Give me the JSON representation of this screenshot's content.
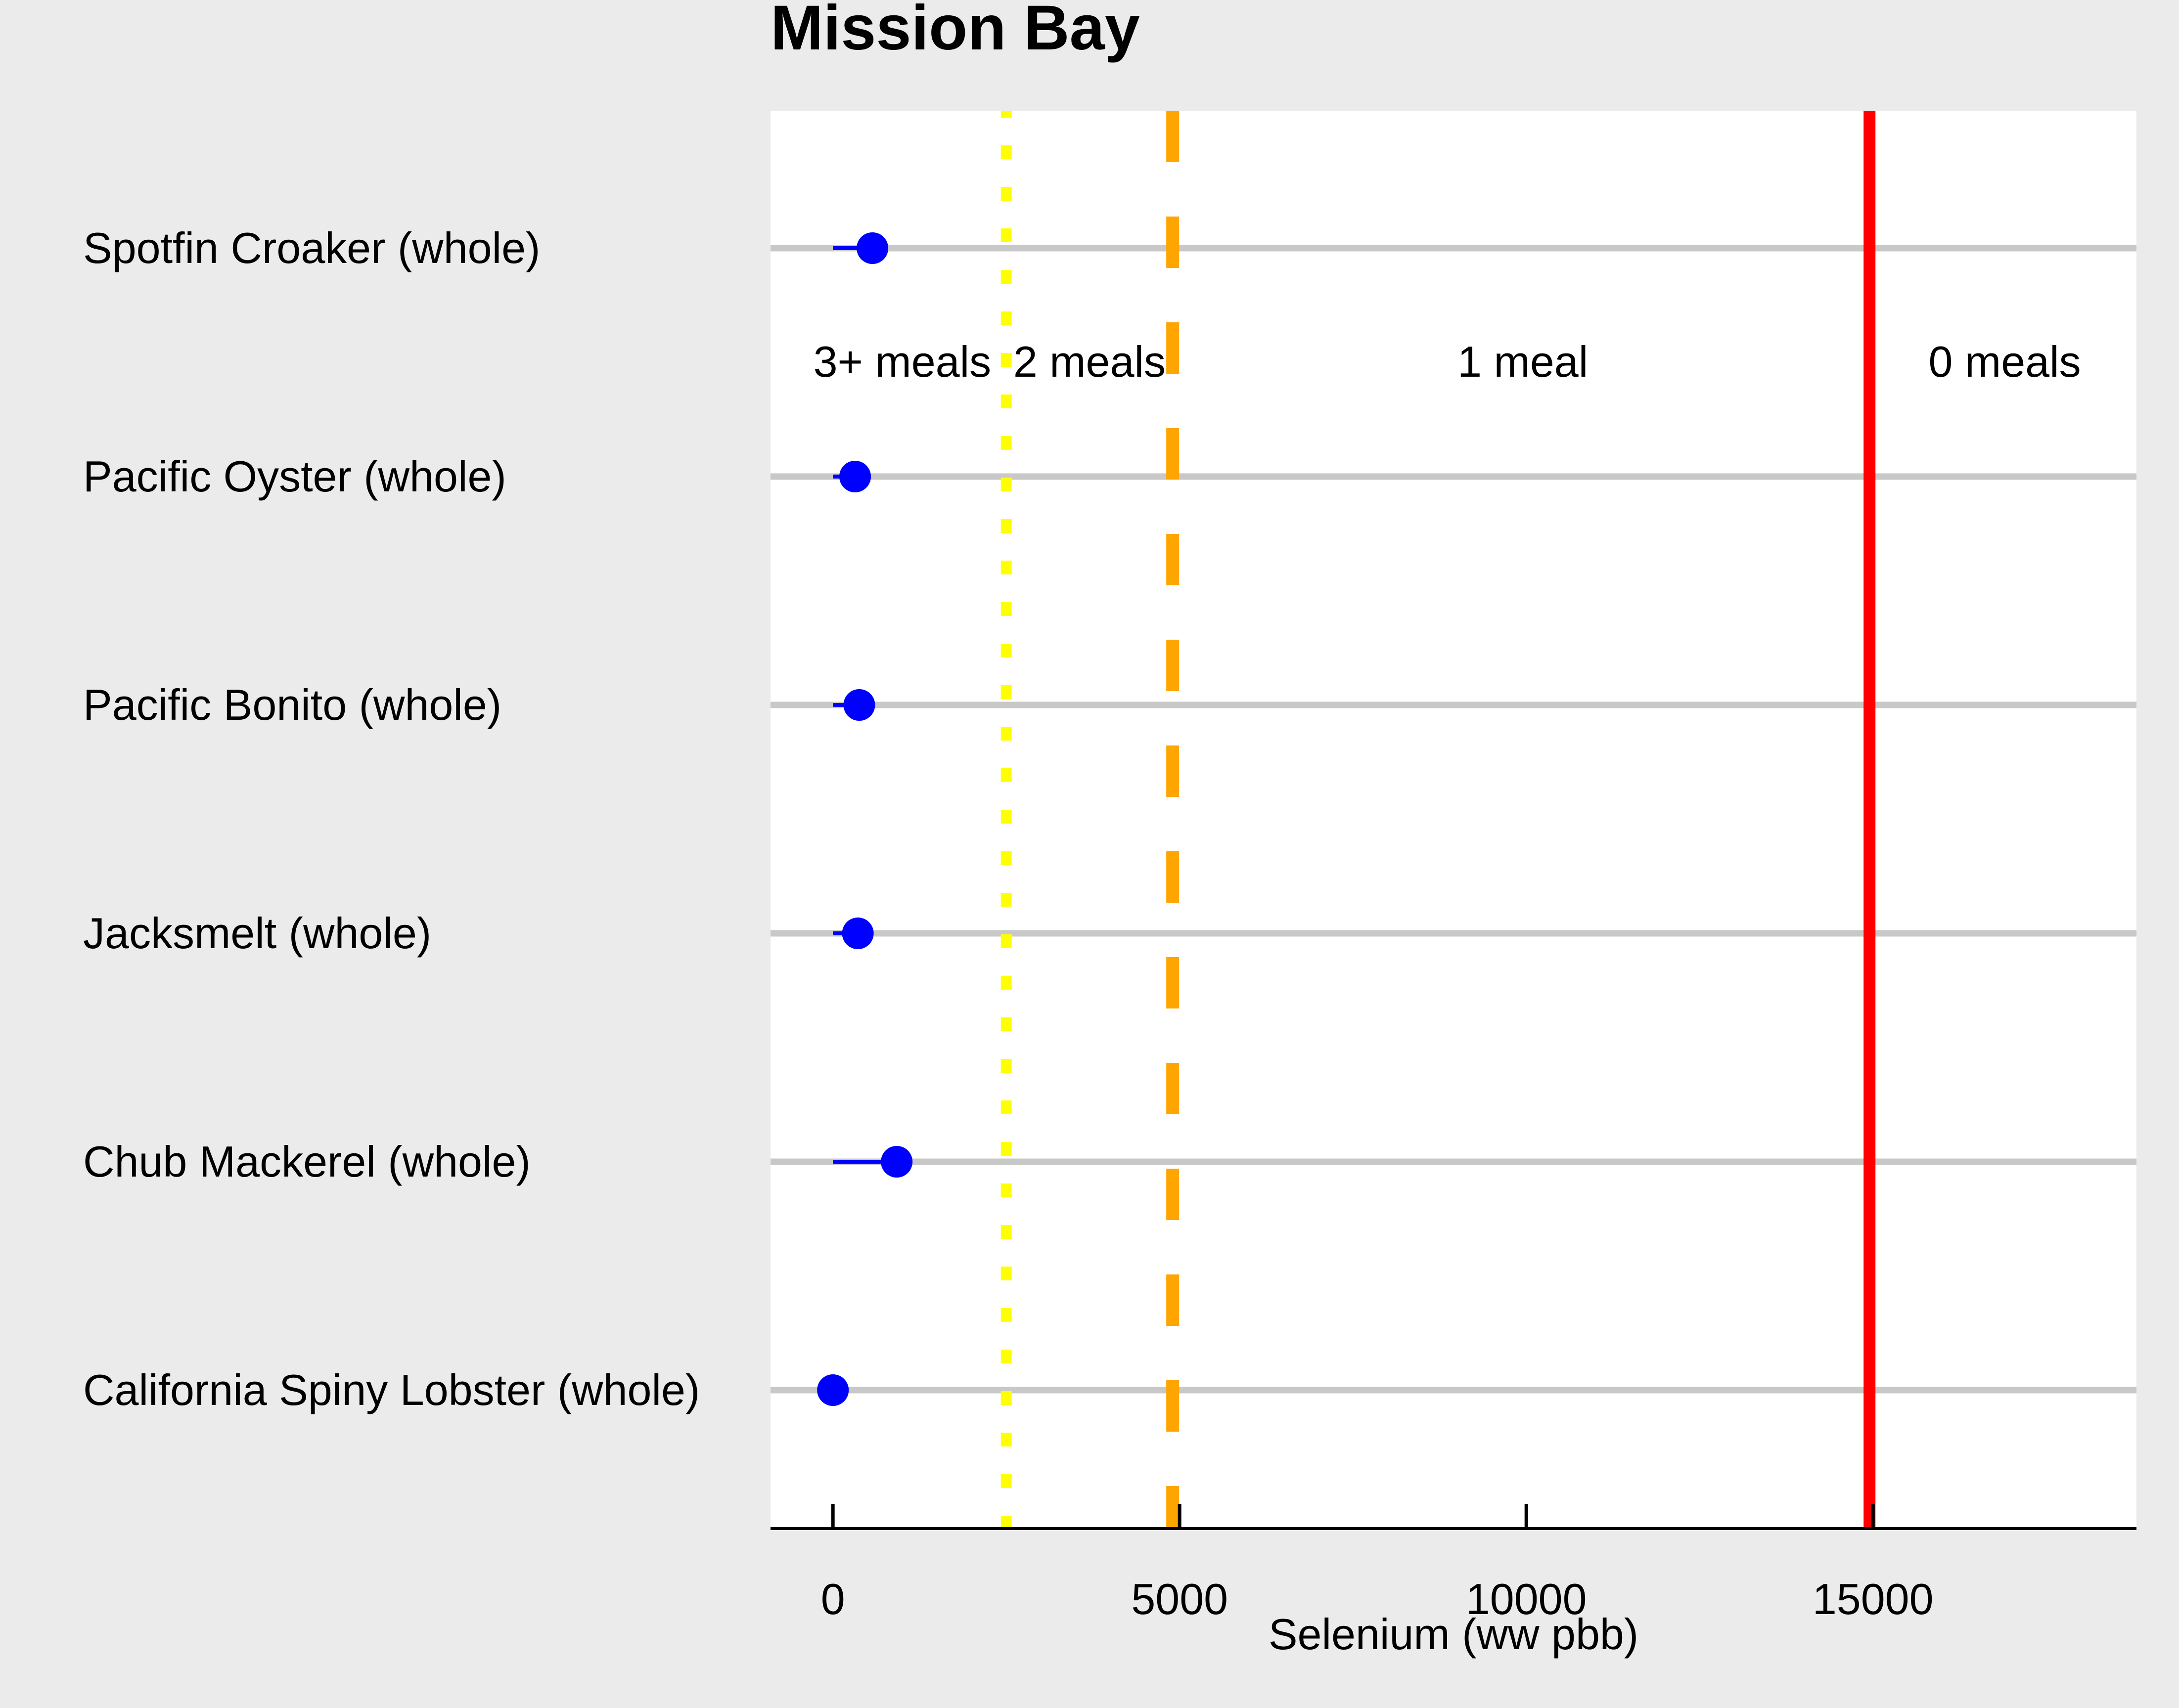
{
  "chart_data": {
    "type": "scatter",
    "title": "Mission Bay",
    "xlabel": "Selenium (ww pbb)",
    "ylabel": "",
    "xlim": [
      -900,
      18800
    ],
    "xticks": [
      0,
      5000,
      10000,
      15000
    ],
    "grid": "horizontal",
    "categories": [
      "Spotfin Croaker (whole)",
      "Pacific Oyster (whole)",
      "Pacific Bonito (whole)",
      "Jacksmelt (whole)",
      "Chub Mackerel (whole)",
      "California Spiny Lobster (whole)"
    ],
    "series": [
      {
        "values": [
          570,
          320,
          380,
          360,
          920,
          0
        ],
        "error_low": [
          0,
          0,
          0,
          0,
          0,
          0
        ],
        "color": "#0000ff"
      }
    ],
    "thresholds": [
      {
        "value": 2500,
        "color": "#ffff00",
        "style": "dotted"
      },
      {
        "value": 4900,
        "color": "#ffa500",
        "style": "dashed"
      },
      {
        "value": 14950,
        "color": "#ff0000",
        "style": "solid"
      }
    ],
    "region_labels": [
      {
        "text": "3+ meals",
        "x": 1000
      },
      {
        "text": "2 meals",
        "x": 3700
      },
      {
        "text": "1 meal",
        "x": 9950
      },
      {
        "text": "0 meals",
        "x": 16900
      }
    ],
    "colors": {
      "page_background": "#ebebeb",
      "panel_background": "#ffffff",
      "gridline": "#c8c8c8",
      "point": "#0000ff"
    }
  }
}
